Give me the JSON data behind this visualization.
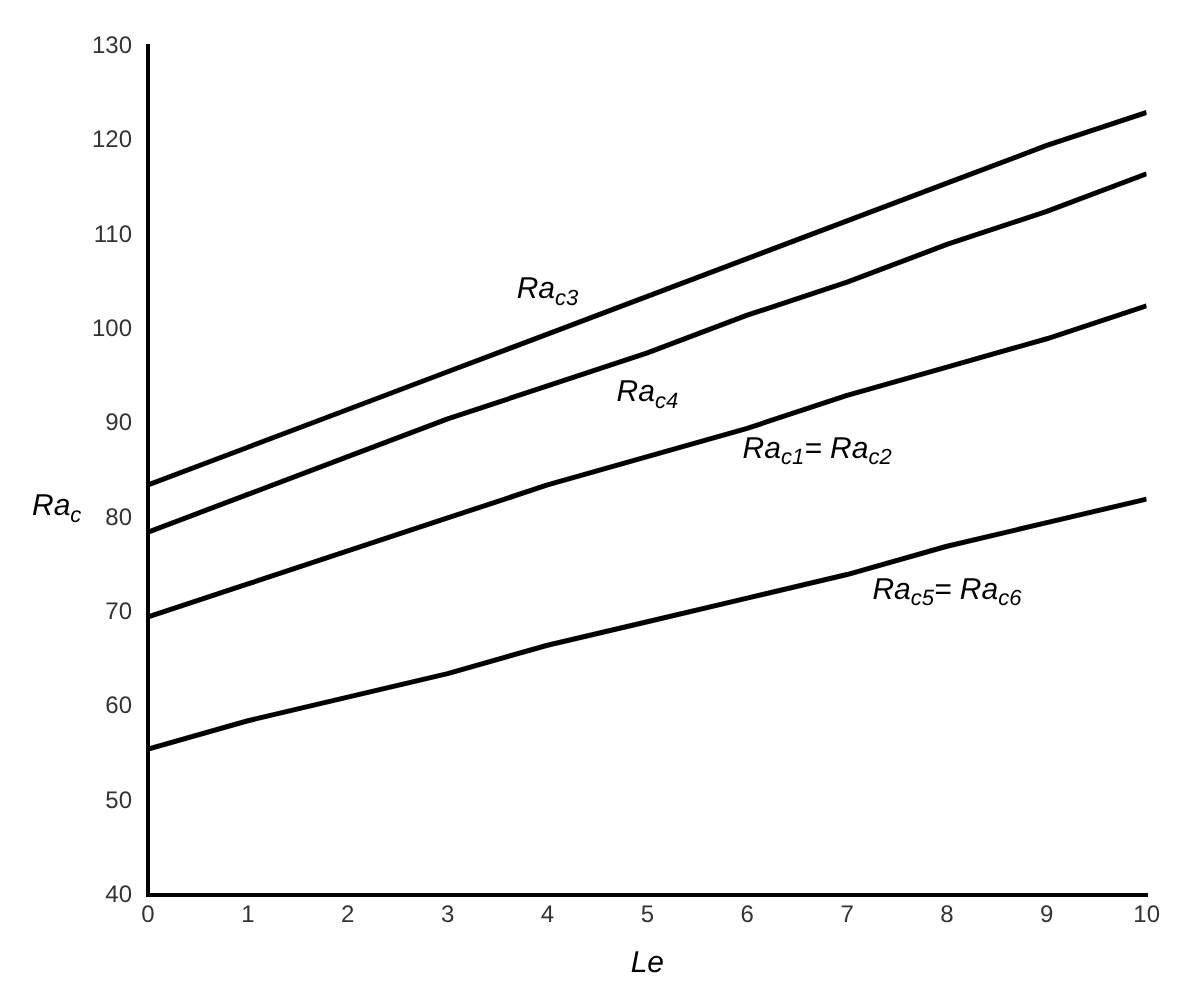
{
  "chart_data": {
    "type": "line",
    "xlabel": "Le",
    "ylabel": "Ra$_{c}$",
    "x": [
      0,
      1,
      2,
      3,
      4,
      5,
      6,
      7,
      8,
      9,
      10
    ],
    "xlim": [
      0,
      10
    ],
    "xticks": [
      0,
      1,
      2,
      3,
      4,
      5,
      6,
      7,
      8,
      9,
      10
    ],
    "ylim": [
      40,
      130
    ],
    "yticks": [
      40,
      50,
      60,
      70,
      80,
      90,
      100,
      110,
      120,
      130
    ],
    "grid": false,
    "legend": false,
    "marker": "none",
    "line_style": "solid",
    "series": [
      {
        "name": "Ra$_{c3}$",
        "color": "#000000",
        "values": [
          83.5,
          87.5,
          91.5,
          95.5,
          99.5,
          103.5,
          107.5,
          111.5,
          115.5,
          119.5,
          123
        ]
      },
      {
        "name": "Ra$_{c4}$",
        "color": "#000000",
        "values": [
          78.5,
          82.5,
          86.5,
          90.5,
          94,
          97.5,
          101.5,
          105,
          109,
          112.5,
          116.5
        ]
      },
      {
        "name": "Ra$_{c1}$= Ra$_{c2}$",
        "color": "#000000",
        "values": [
          69.5,
          73,
          76.5,
          80,
          83.5,
          86.5,
          89.5,
          93,
          96,
          99,
          102.5
        ]
      },
      {
        "name": "Ra$_{c5}$= Ra$_{c6}$",
        "color": "#000000",
        "values": [
          55.5,
          58.5,
          61,
          63.5,
          66.5,
          69,
          71.5,
          74,
          77,
          79.5,
          82
        ]
      }
    ]
  }
}
